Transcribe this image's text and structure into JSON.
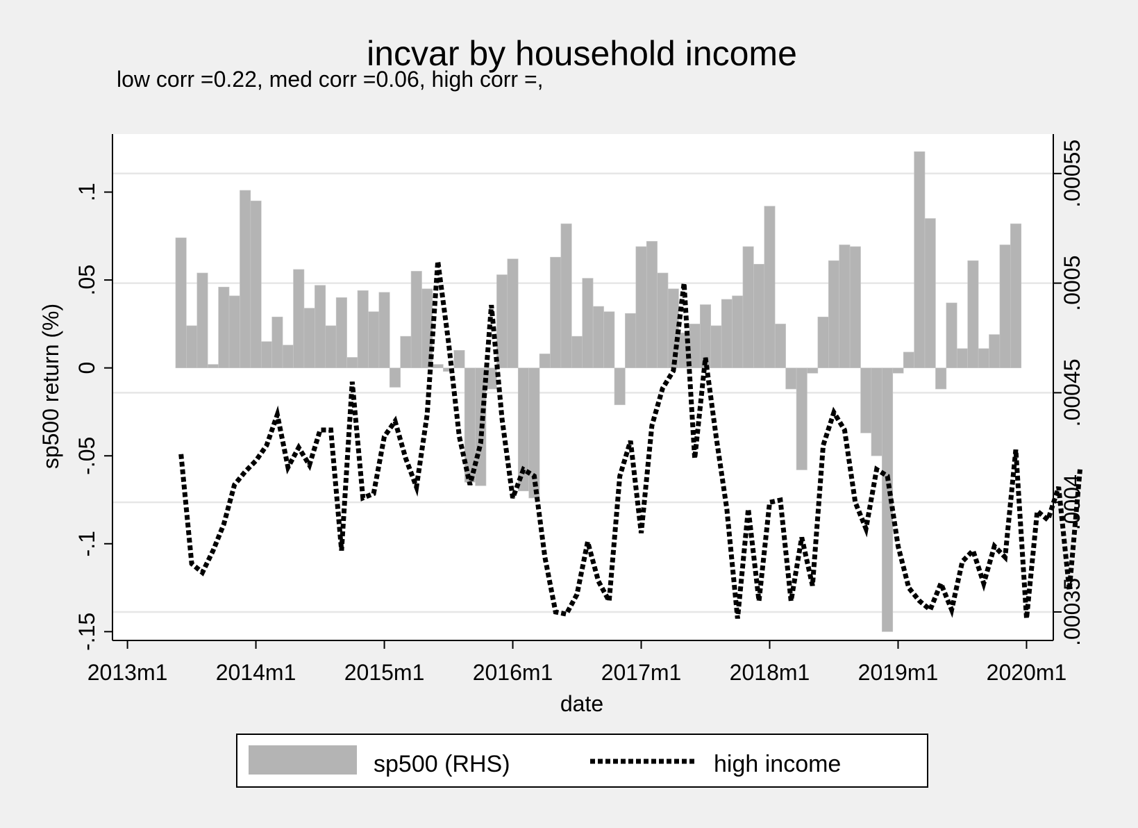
{
  "chart_data": {
    "type": "bar+line",
    "title": "incvar by household income",
    "subtitle": "low corr =0.22, med corr =0.06, high corr =,",
    "xlabel": "date",
    "ylabel": "sp500 return (%)",
    "x_ticks": [
      "2013m1",
      "2014m1",
      "2015m1",
      "2016m1",
      "2017m1",
      "2018m1",
      "2019m1",
      "2020m1"
    ],
    "y_ticks_left": [
      "-.15",
      "-.1",
      "-.05",
      "0",
      ".05",
      ".1"
    ],
    "y_ticks_right": [
      ".00035",
      ".0004",
      ".00045",
      ".0005",
      ".00055"
    ],
    "ylim_left": [
      -0.155,
      0.133
    ],
    "ylim_right": [
      0.000337,
      0.000568
    ],
    "xlim_month_index": [
      -1.4,
      86.5
    ],
    "x_start": "2013m1",
    "grid": "horizontal lines at right-axis ticks",
    "legend_position": "bottom",
    "colors": {
      "bar": "#b4b4b4",
      "line": "#000000",
      "plot_bg": "#ffffff",
      "page_bg": "#f0f0f0",
      "grid": "#e6e6e6"
    },
    "series": [
      {
        "name": "sp500 (RHS)",
        "kind": "bar",
        "axis": "left",
        "x_start": "2013m6",
        "values": [
          0.074,
          0.024,
          0.054,
          0.002,
          0.046,
          0.041,
          0.101,
          0.095,
          0.015,
          0.029,
          0.013,
          0.056,
          0.034,
          0.047,
          0.024,
          0.04,
          0.006,
          0.044,
          0.032,
          0.043,
          -0.011,
          0.018,
          0.055,
          0.045,
          0.002,
          -0.002,
          0.01,
          -0.065,
          -0.067,
          -0.012,
          0.053,
          0.062,
          -0.07,
          -0.074,
          0.008,
          0.063,
          0.082,
          0.018,
          0.051,
          0.035,
          0.032,
          -0.021,
          0.031,
          0.069,
          0.072,
          0.054,
          0.045,
          0.02,
          0.025,
          0.036,
          0.024,
          0.039,
          0.041,
          0.069,
          0.059,
          0.092,
          0.025,
          -0.012,
          -0.058,
          -0.003,
          0.029,
          0.061,
          0.07,
          0.069,
          -0.037,
          -0.05,
          -0.15,
          -0.003,
          0.009,
          0.123,
          0.085,
          -0.012,
          0.037,
          0.011,
          0.061,
          0.011,
          0.019,
          0.07,
          0.082
        ]
      },
      {
        "name": "high income",
        "kind": "line",
        "axis": "right",
        "style": "dotted",
        "x_start": "2013m6",
        "values": [
          0.000422,
          0.000372,
          0.000368,
          0.000378,
          0.00039,
          0.000408,
          0.000414,
          0.000419,
          0.000426,
          0.00044,
          0.000416,
          0.000425,
          0.000417,
          0.000433,
          0.000433,
          0.000378,
          0.000455,
          0.000402,
          0.000404,
          0.00043,
          0.000437,
          0.00042,
          0.000407,
          0.00044,
          0.00051,
          0.000473,
          0.00043,
          0.000408,
          0.000427,
          0.00049,
          0.000438,
          0.000402,
          0.000415,
          0.000412,
          0.000375,
          0.00035,
          0.000349,
          0.000358,
          0.000382,
          0.000364,
          0.000355,
          0.000412,
          0.000428,
          0.000386,
          0.000435,
          0.000452,
          0.00046,
          0.0005,
          0.00042,
          0.000466,
          0.00043,
          0.000397,
          0.000347,
          0.000397,
          0.000355,
          0.0004,
          0.000401,
          0.000355,
          0.000384,
          0.000362,
          0.000426,
          0.000441,
          0.000433,
          0.0004,
          0.000388,
          0.000415,
          0.000412,
          0.00038,
          0.000361,
          0.000355,
          0.000351,
          0.000363,
          0.000351,
          0.000373,
          0.000378,
          0.000363,
          0.00038,
          0.000375,
          0.000424,
          0.000347,
          0.000396,
          0.000392,
          0.000407,
          0.00036,
          0.000415
        ]
      }
    ]
  }
}
